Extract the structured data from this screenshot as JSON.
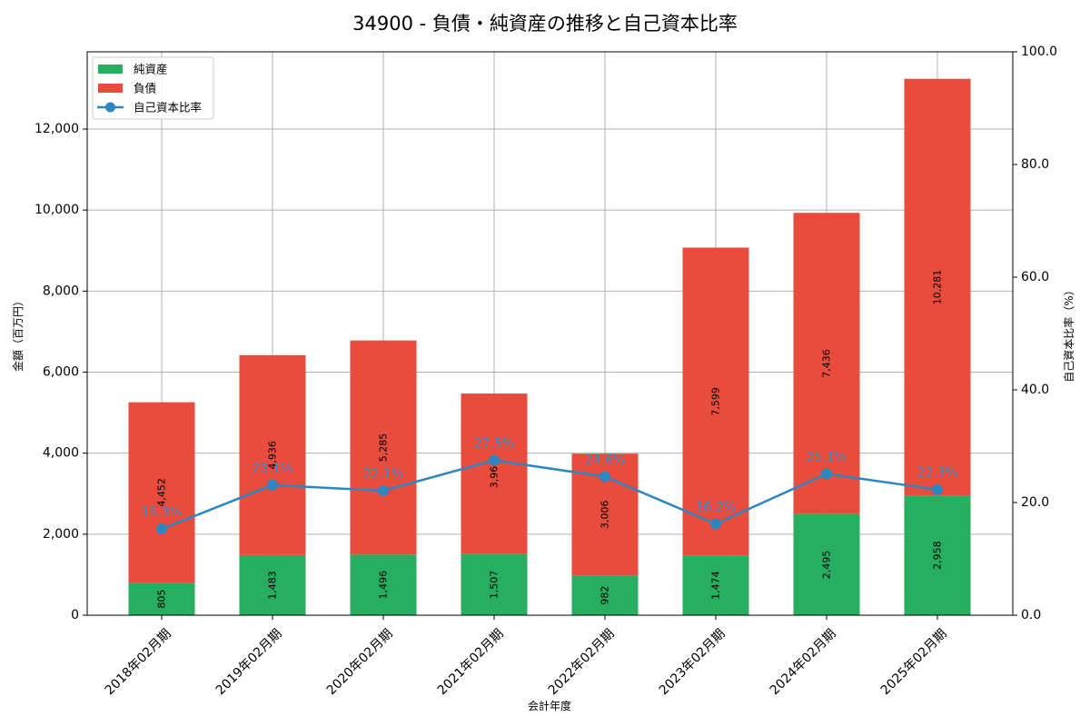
{
  "title": "34900 - 負債・純資産の推移と自己資本比率",
  "colors": {
    "net_assets": "#27ae60",
    "liabilities": "#e74c3c",
    "ratio_line": "#2e86c1",
    "ratio_label": "#3d85c6",
    "grid": "#b0b0b0"
  },
  "legend": [
    {
      "label": "純資産",
      "type": "bar",
      "color": "#27ae60"
    },
    {
      "label": "負債",
      "type": "bar",
      "color": "#e74c3c"
    },
    {
      "label": "自己資本比率",
      "type": "line-marker",
      "color": "#2e86c1"
    }
  ],
  "chart_data": {
    "type": "bar",
    "stacked": true,
    "title": "34900 - 負債・純資産の推移と自己資本比率",
    "xlabel": "会計年度",
    "ylabel": "金額（百万円）",
    "y2label": "自己資本比率（%）",
    "categories": [
      "2018年02月期",
      "2019年02月期",
      "2020年02月期",
      "2021年02月期",
      "2022年02月期",
      "2023年02月期",
      "2024年02月期",
      "2025年02月期"
    ],
    "series": [
      {
        "name": "純資産",
        "type": "bar",
        "axis": "left",
        "color": "#27ae60",
        "values": [
          805,
          1483,
          1496,
          1507,
          982,
          1474,
          2495,
          2958
        ],
        "labels": [
          "805",
          "1,483",
          "1,496",
          "1,507",
          "982",
          "1,474",
          "2,495",
          "2,958"
        ]
      },
      {
        "name": "負債",
        "type": "bar",
        "axis": "left",
        "color": "#e74c3c",
        "values": [
          4452,
          4936,
          5285,
          3964,
          3006,
          7599,
          7436,
          10281
        ],
        "labels": [
          "4,452",
          "4,936",
          "5,285",
          "3,964",
          "3,006",
          "7,599",
          "7,436",
          "10,281"
        ]
      },
      {
        "name": "自己資本比率",
        "type": "line",
        "axis": "right",
        "color": "#2e86c1",
        "values": [
          15.3,
          23.1,
          22.1,
          27.5,
          24.6,
          16.2,
          25.1,
          22.3
        ],
        "labels": [
          "15.3%",
          "23.1%",
          "22.1%",
          "27.5%",
          "24.6%",
          "16.2%",
          "25.1%",
          "22.3%"
        ]
      }
    ],
    "ylim": [
      0,
      13900
    ],
    "y2lim": [
      0,
      100
    ],
    "yticks": [
      0,
      2000,
      4000,
      6000,
      8000,
      10000,
      12000
    ],
    "ytick_labels": [
      "0",
      "2,000",
      "4,000",
      "6,000",
      "8,000",
      "10,000",
      "12,000"
    ],
    "y2ticks": [
      0,
      20,
      40,
      60,
      80,
      100
    ],
    "y2tick_labels": [
      "0.0",
      "20.0",
      "40.0",
      "60.0",
      "80.0",
      "100.0"
    ],
    "grid": true,
    "legend_position": "upper left"
  }
}
